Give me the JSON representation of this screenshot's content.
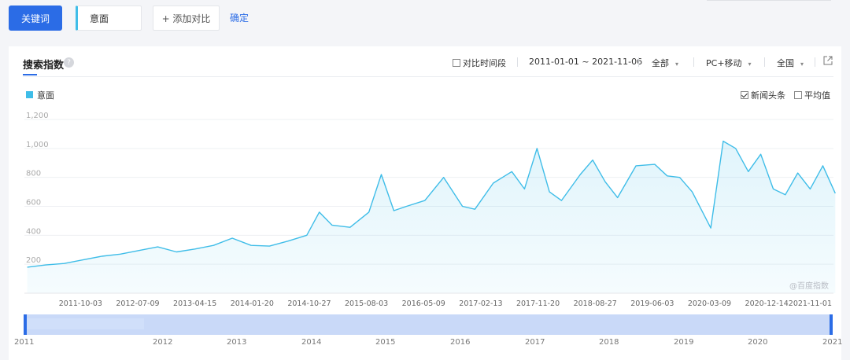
{
  "toolbar": {
    "keyword_button": "关键词",
    "keyword_value": "意面",
    "add_compare": "+ 添加对比",
    "confirm": "确定"
  },
  "panel": {
    "title": "搜索指数",
    "help_icon": "question-icon",
    "compare_period_label": "对比时间段",
    "date_range": "2011-01-01 ~ 2021-11-06",
    "source_filter": "全部",
    "device_filter": "PC+移动",
    "region_filter": "全国",
    "export_icon": "export-icon",
    "news_label": "新闻头条",
    "average_label": "平均值",
    "watermark": "@百度指数"
  },
  "colors": {
    "accent": "#2b6ce6",
    "series": "#3fbde8"
  },
  "chart_data": {
    "type": "area",
    "title": "",
    "xlabel": "",
    "ylabel": "",
    "ylim": [
      0,
      1200
    ],
    "yticks": [
      200,
      400,
      600,
      800,
      1000,
      1200
    ],
    "ytick_labels": [
      "200",
      "400",
      "600",
      "800",
      "1,000",
      "1,200"
    ],
    "grid": true,
    "legend_position": "top-left",
    "x_tick_labels": [
      "2011-10-03",
      "2012-07-09",
      "2013-04-15",
      "2014-01-20",
      "2014-10-27",
      "2015-08-03",
      "2016-05-09",
      "2017-02-13",
      "2017-11-20",
      "2018-08-27",
      "2019-06-03",
      "2020-03-09",
      "2020-12-14",
      "2021-11-01"
    ],
    "x_range": [
      "2011-01-01",
      "2021-11-06"
    ],
    "series": [
      {
        "name": "意面",
        "x": [
          "2011-01",
          "2011-04",
          "2011-07",
          "2011-10",
          "2012-01",
          "2012-04",
          "2012-07",
          "2012-10",
          "2013-01",
          "2013-04",
          "2013-07",
          "2013-10",
          "2014-01",
          "2014-04",
          "2014-07",
          "2014-10",
          "2014-12",
          "2015-02",
          "2015-05",
          "2015-08",
          "2015-10",
          "2015-12",
          "2016-02",
          "2016-05",
          "2016-08",
          "2016-11",
          "2017-01",
          "2017-04",
          "2017-07",
          "2017-09",
          "2017-11",
          "2018-01",
          "2018-03",
          "2018-06",
          "2018-08",
          "2018-10",
          "2018-12",
          "2019-03",
          "2019-06",
          "2019-08",
          "2019-10",
          "2019-12",
          "2020-03",
          "2020-05",
          "2020-07",
          "2020-09",
          "2020-11",
          "2021-01",
          "2021-03",
          "2021-05",
          "2021-07",
          "2021-09",
          "2021-11"
        ],
        "values": [
          180,
          195,
          205,
          230,
          255,
          270,
          295,
          320,
          285,
          305,
          330,
          380,
          330,
          325,
          360,
          400,
          560,
          470,
          455,
          560,
          820,
          570,
          600,
          640,
          800,
          600,
          580,
          760,
          840,
          720,
          1000,
          700,
          640,
          820,
          920,
          770,
          660,
          880,
          890,
          810,
          800,
          700,
          450,
          1050,
          1000,
          840,
          960,
          720,
          680,
          830,
          720,
          880,
          690
        ]
      }
    ]
  },
  "slider": {
    "years": [
      "2011",
      "2012",
      "2013",
      "2014",
      "2015",
      "2016",
      "2017",
      "2018",
      "2019",
      "2020",
      "2021"
    ]
  }
}
